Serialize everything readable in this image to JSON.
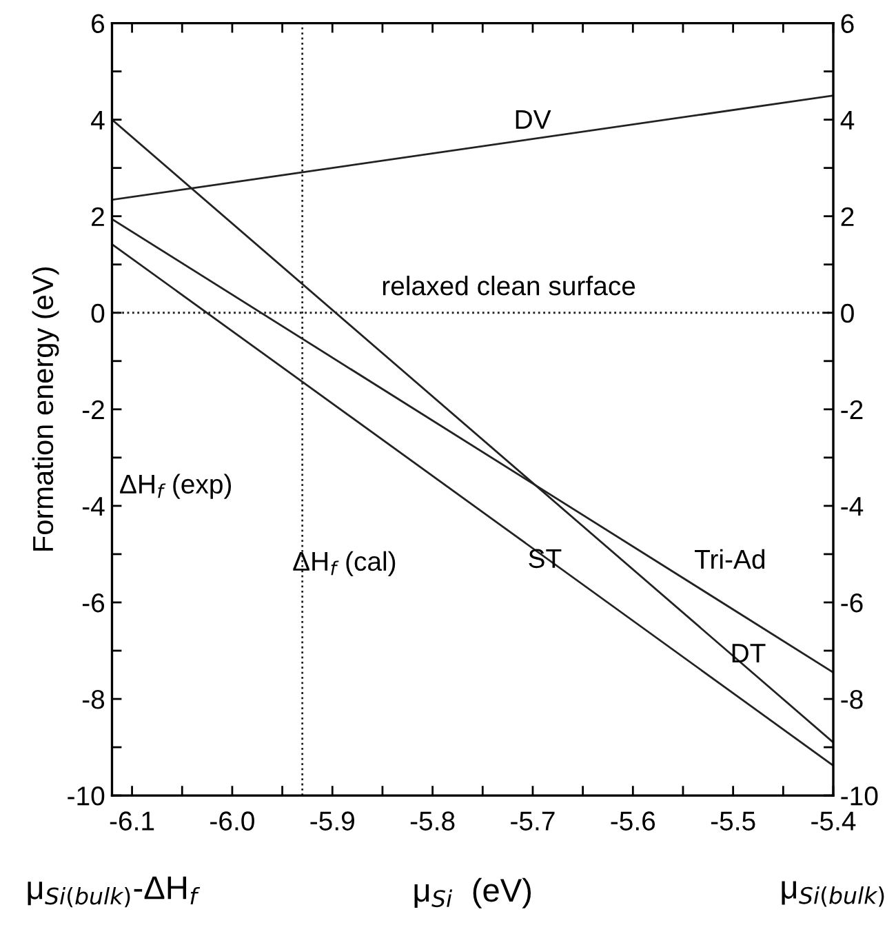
{
  "chart_data": {
    "type": "line",
    "ylabel": "Formation energy (eV)",
    "xlabel": "μ$_{Si}$  (eV)",
    "xlim": [
      -6.12,
      -5.4
    ],
    "xticks": [
      -6.1,
      {
        "value": -6.05,
        "label": null
      },
      {
        "value": -6.0,
        "label": "-6.0"
      },
      {
        "value": -5.95,
        "label": null
      },
      -5.9,
      {
        "value": -5.85,
        "label": null
      },
      -5.8,
      {
        "value": -5.75,
        "label": null
      },
      -5.7,
      {
        "value": -5.65,
        "label": null
      },
      -5.6,
      {
        "value": -5.55,
        "label": null
      },
      -5.5,
      {
        "value": -5.45,
        "label": null
      },
      -5.4
    ],
    "ylim": [
      -10,
      6
    ],
    "yticks": [
      -10,
      {
        "value": -9,
        "label": null
      },
      -8,
      {
        "value": -7,
        "label": null
      },
      -6,
      {
        "value": -5,
        "label": null
      },
      -4,
      {
        "value": -3,
        "label": null
      },
      -2,
      {
        "value": -1,
        "label": null
      },
      0,
      {
        "value": 1,
        "label": null
      },
      2,
      {
        "value": 3,
        "label": null
      },
      4,
      {
        "value": 5,
        "label": null
      },
      6
    ],
    "y2lim": [
      -10,
      6
    ],
    "y2ticks": [
      -10,
      {
        "value": -9,
        "label": null
      },
      -8,
      {
        "value": -7,
        "label": null
      },
      -6,
      {
        "value": -5,
        "label": null
      },
      -4,
      {
        "value": -3,
        "label": null
      },
      -2,
      {
        "value": -1,
        "label": null
      },
      0,
      {
        "value": 1,
        "label": null
      },
      2,
      {
        "value": 3,
        "label": null
      },
      4,
      {
        "value": 5,
        "label": null
      },
      6
    ],
    "x": [
      -6.12,
      -5.4
    ],
    "series": [
      {
        "name": "DV",
        "color": "#222222",
        "values": [
          2.34,
          4.5
        ]
      },
      {
        "name": "DT",
        "color": "#222222",
        "values": [
          4.0,
          -8.9
        ]
      },
      {
        "name": "Tri-Ad",
        "color": "#222222",
        "values": [
          1.94,
          -7.45
        ]
      },
      {
        "name": "ST",
        "color": "#222222",
        "values": [
          1.42,
          -9.38
        ]
      }
    ],
    "marker": "none",
    "line_style": "solid",
    "grid": false,
    "legend": false,
    "ref_lines": [
      {
        "axis": "y",
        "value": 0,
        "label": "relaxed clean surface",
        "line_style": "dotted",
        "color": "#222222"
      },
      {
        "axis": "x",
        "value": -5.93,
        "line_style": "dotted",
        "color": "#222222"
      }
    ],
    "annotations": [
      "ΔH$_{f}$ (exp)",
      "ΔH$_{f}$ (cal)",
      "μ$_{Si(bulk)}$-ΔH$_{f}$",
      "μ$_{Si(bulk)}$"
    ]
  }
}
